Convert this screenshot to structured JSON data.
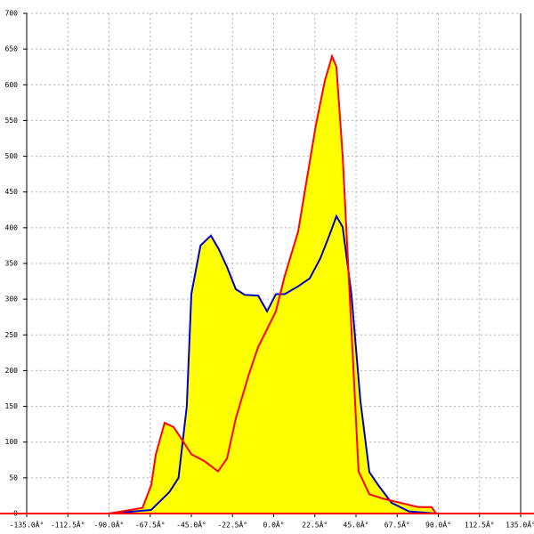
{
  "chart_data": {
    "type": "area-line",
    "xlim": [
      -135,
      135
    ],
    "ylim": [
      0,
      700
    ],
    "xticks": [
      {
        "value": -135,
        "label": "-135.0Â°"
      },
      {
        "value": -112.5,
        "label": "-112.5Â°"
      },
      {
        "value": -90,
        "label": "-90.0Â°"
      },
      {
        "value": -67.5,
        "label": "-67.5Â°"
      },
      {
        "value": -45,
        "label": "-45.0Â°"
      },
      {
        "value": -22.5,
        "label": "-22.5Â°"
      },
      {
        "value": 0,
        "label": "0.0Â°"
      },
      {
        "value": 22.5,
        "label": "22.5Â°"
      },
      {
        "value": 45,
        "label": "45.0Â°"
      },
      {
        "value": 67.5,
        "label": "67.5Â°"
      },
      {
        "value": 90,
        "label": "90.0Â°"
      },
      {
        "value": 112.5,
        "label": "112.5Â°"
      },
      {
        "value": 135,
        "label": "135.0Â°"
      }
    ],
    "yticks": [
      0,
      50,
      100,
      150,
      200,
      250,
      300,
      350,
      400,
      450,
      500,
      550,
      600,
      650,
      700
    ],
    "grid": true,
    "fill_color": "#ffff00",
    "baseline_color": "#ff0000",
    "series": [
      {
        "color": "#0000cc",
        "x": [
          -90,
          -67,
          -57,
          -52,
          -47.5,
          -45,
          -40,
          -34.3,
          -30,
          -25.5,
          -20.7,
          -15.8,
          -8.5,
          -3.6,
          1.2,
          6,
          13.4,
          19.7,
          25.5,
          30.4,
          34.3,
          37.7,
          42.5,
          47.4,
          52.3,
          57.1,
          64.4,
          74,
          88.8
        ],
        "values": [
          0,
          5,
          30,
          50,
          150,
          307,
          375,
          389,
          370,
          345,
          314,
          306,
          305,
          283,
          307,
          307,
          318,
          329,
          357,
          389,
          416,
          401,
          307,
          158,
          58,
          40,
          15,
          3,
          0
        ]
      },
      {
        "color": "#ff0000",
        "x": [
          -90,
          -71.7,
          -66.9,
          -64.4,
          -59.6,
          -54.7,
          -49.8,
          -45,
          -37.7,
          -30.4,
          -25.5,
          -20.7,
          -13.4,
          -8.5,
          -3.6,
          1.2,
          6,
          13.4,
          18.2,
          23.1,
          28,
          31.9,
          34.3,
          37.7,
          42.5,
          46.4,
          52.3,
          59.6,
          69.3,
          79,
          86.3,
          88.8
        ],
        "values": [
          0,
          8,
          40,
          83,
          127,
          121,
          102,
          83,
          73,
          59,
          77,
          133,
          196,
          233,
          258,
          283,
          332,
          395,
          469,
          544,
          606,
          640,
          625,
          501,
          258,
          59,
          27,
          21,
          15,
          9,
          9,
          0
        ]
      }
    ]
  }
}
